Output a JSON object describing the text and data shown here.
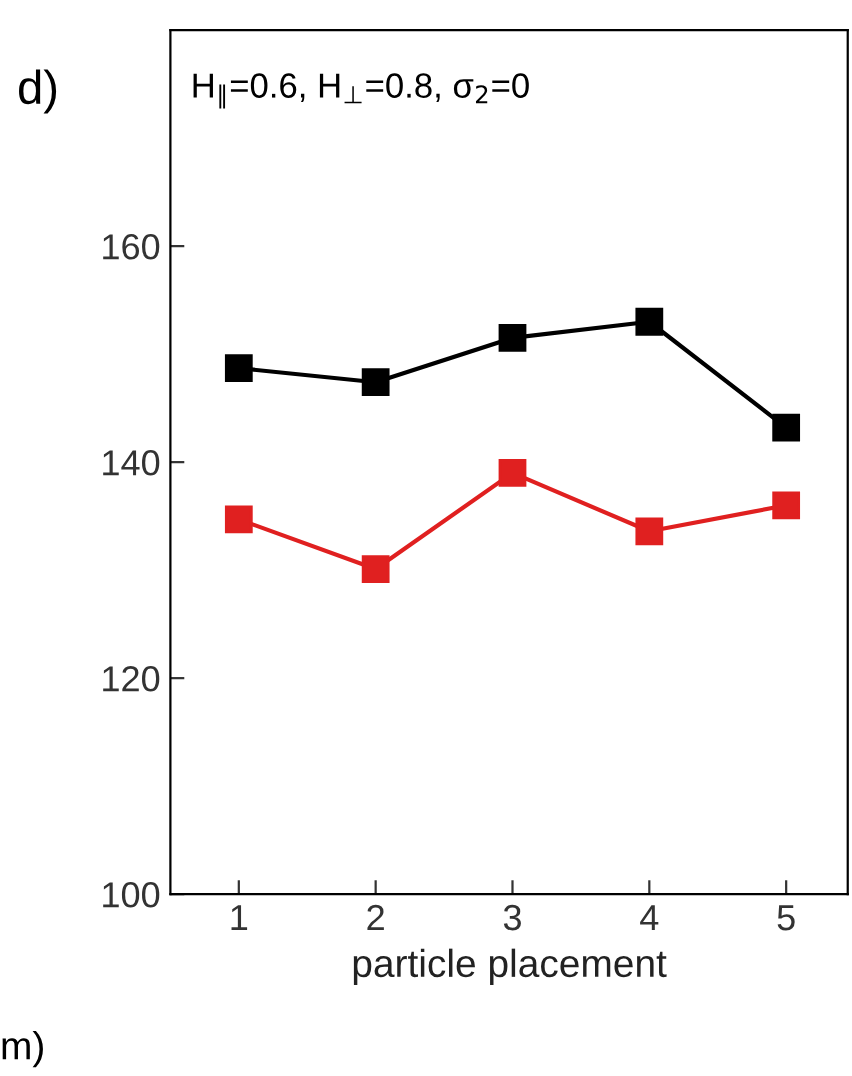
{
  "chart_data": {
    "type": "line",
    "title": "H$_{∥}$=0.6, H$_{⊥}$=0.8, σ$_{2}$=0",
    "xlabel": "particle placement",
    "annotations": [
      "d)",
      "m)"
    ],
    "x": [
      1,
      2,
      3,
      4,
      5
    ],
    "series": [
      {
        "color": "#000000",
        "values": [
          148.7,
          147.4,
          151.5,
          153,
          143.2
        ]
      },
      {
        "color": "#e02020",
        "values": [
          134.7,
          130.1,
          139,
          133.6,
          136
        ]
      }
    ],
    "xlim": [
      0.5,
      5.45
    ],
    "xticks": [
      1,
      2,
      3,
      4,
      5
    ],
    "ylim": [
      100,
      180
    ],
    "yticks": [
      100,
      120,
      140,
      160
    ],
    "marker": "square",
    "line_style": "solid",
    "grid": false,
    "legend": false
  }
}
